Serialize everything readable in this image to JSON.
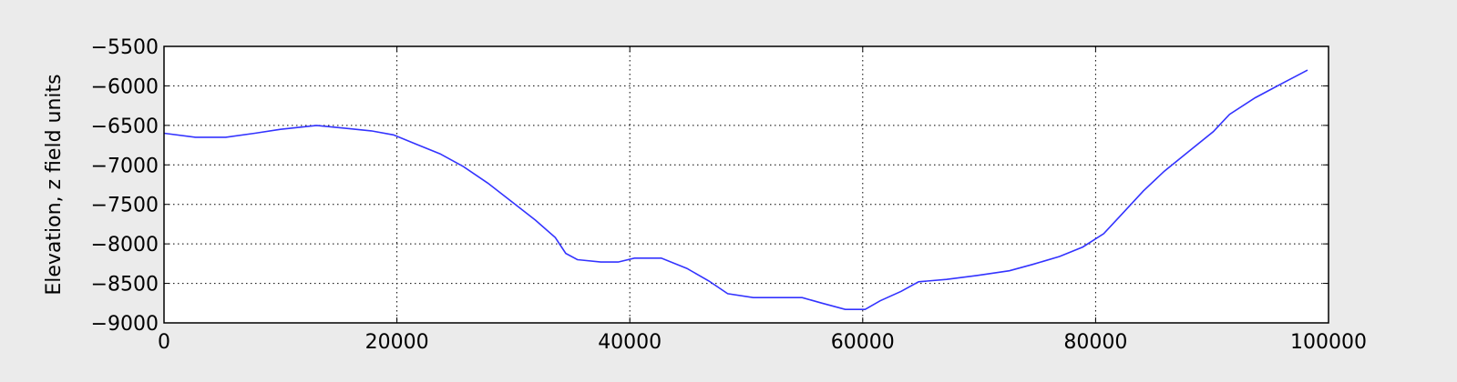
{
  "chart_data": {
    "type": "line",
    "title": "",
    "xlabel": "",
    "ylabel": "Elevation, z field units",
    "xlim": [
      0,
      100000
    ],
    "ylim": [
      -9000,
      -5500
    ],
    "xticks": [
      0,
      20000,
      40000,
      60000,
      80000,
      100000
    ],
    "yticks": [
      -9000,
      -8500,
      -8000,
      -7500,
      -7000,
      -6500,
      -6000,
      -5500
    ],
    "xtick_labels": [
      "0",
      "20000",
      "40000",
      "60000",
      "80000",
      "100000"
    ],
    "ytick_labels": [
      "−9000",
      "−8500",
      "−8000",
      "−7500",
      "−7000",
      "−6500",
      "−6000",
      "−5500"
    ],
    "grid": true,
    "line_color": "#3333ff",
    "series": [
      {
        "x": [
          0,
          2700,
          5300,
          7800,
          10000,
          13100,
          15800,
          17800,
          19700,
          21700,
          23700,
          25700,
          27800,
          29900,
          31900,
          33600,
          34500,
          35500,
          37500,
          39000,
          40400,
          42700,
          44900,
          46800,
          48400,
          50600,
          52500,
          54800,
          56500,
          58500,
          60200,
          61500,
          63300,
          64800,
          67200,
          69800,
          72600,
          74600,
          76900,
          78900,
          80700,
          82400,
          84100,
          85900,
          88000,
          90100,
          91500,
          93700,
          96000,
          98200
        ],
        "y": [
          -6600,
          -6650,
          -6650,
          -6600,
          -6550,
          -6500,
          -6540,
          -6570,
          -6620,
          -6740,
          -6860,
          -7020,
          -7230,
          -7470,
          -7700,
          -7920,
          -8120,
          -8200,
          -8230,
          -8230,
          -8180,
          -8180,
          -8310,
          -8470,
          -8630,
          -8680,
          -8680,
          -8680,
          -8750,
          -8830,
          -8830,
          -8720,
          -8600,
          -8480,
          -8450,
          -8400,
          -8340,
          -8260,
          -8160,
          -8040,
          -7870,
          -7600,
          -7330,
          -7080,
          -6830,
          -6580,
          -6360,
          -6150,
          -5970,
          -5800
        ]
      }
    ]
  }
}
